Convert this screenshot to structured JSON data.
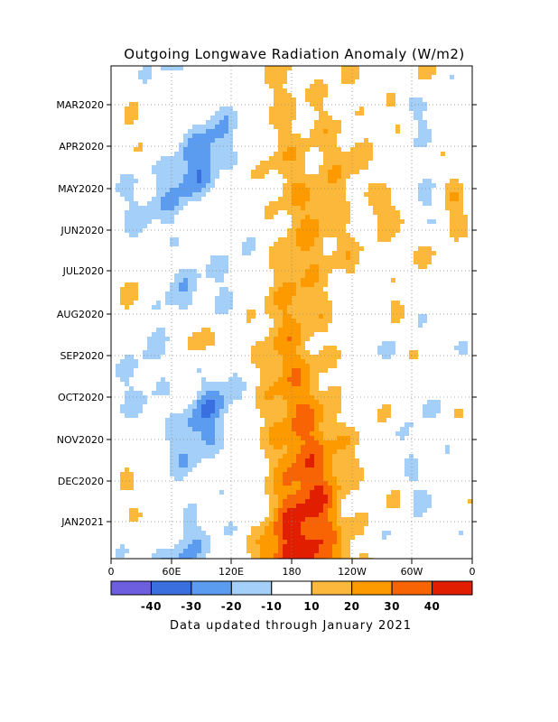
{
  "chart_data": {
    "type": "heatmap",
    "title": "Outgoing Longwave Radiation Anomaly (W/m2)",
    "x_ticks": [
      "0",
      "60E",
      "120E",
      "180",
      "120W",
      "60W",
      "0"
    ],
    "x_range": [
      0,
      360
    ],
    "y_ticks": [
      "MAR2020",
      "APR2020",
      "MAY2020",
      "JUN2020",
      "JUL2020",
      "AUG2020",
      "SEP2020",
      "OCT2020",
      "NOV2020",
      "DEC2020",
      "JAN2021"
    ],
    "colorbar": {
      "tick_labels": [
        "-40",
        "-30",
        "-20",
        "-10",
        "10",
        "20",
        "30",
        "40"
      ],
      "bins": [
        {
          "range": "< -40",
          "color": "#6d5ee0"
        },
        {
          "range": "-40 to -30",
          "color": "#3a6fe0"
        },
        {
          "range": "-30 to -20",
          "color": "#5b9bf0"
        },
        {
          "range": "-20 to -10",
          "color": "#a3cff9"
        },
        {
          "range": "-10 to 10",
          "color": "#ffffff"
        },
        {
          "range": "10 to 20",
          "color": "#fbb83a"
        },
        {
          "range": "20 to 30",
          "color": "#fc9a00"
        },
        {
          "range": "30 to 40",
          "color": "#f86404"
        },
        {
          "range": "> 40",
          "color": "#e11e00"
        }
      ]
    },
    "grid": true,
    "footer": "Data updated through January 2021"
  }
}
